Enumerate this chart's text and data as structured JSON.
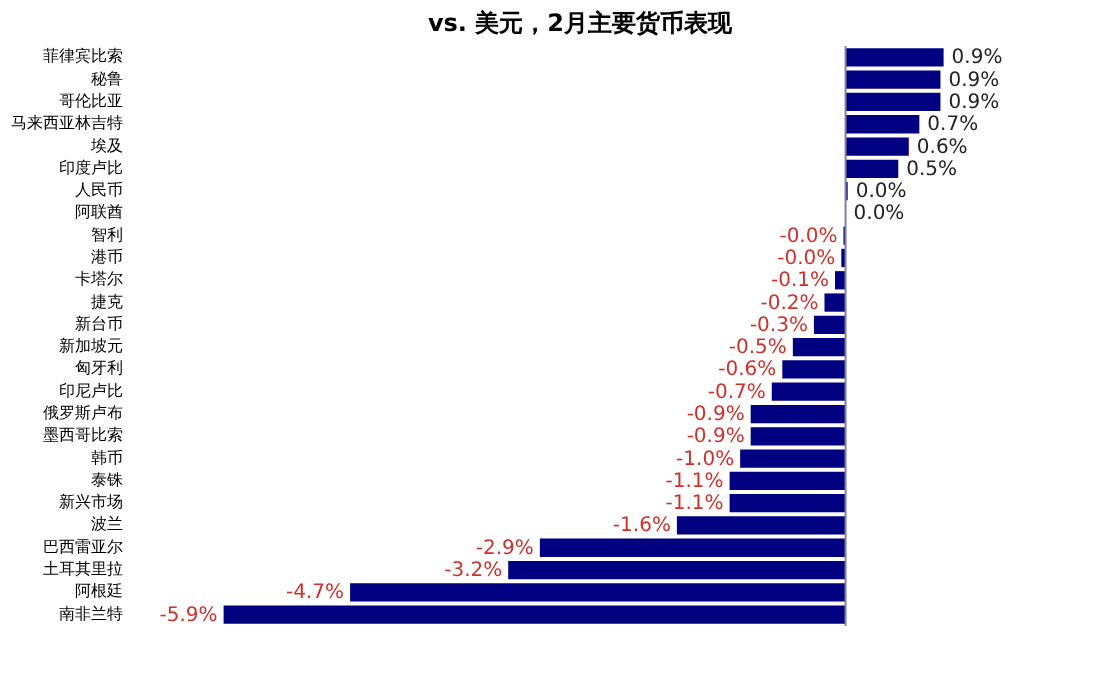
{
  "chart_data": {
    "type": "bar",
    "orientation": "horizontal",
    "title": "vs. 美元，2月主要货币表现",
    "categories": [
      "菲律宾比索",
      "秘鲁",
      "哥伦比亚",
      "马来西亚林吉特",
      "埃及",
      "印度卢比",
      "人民币",
      "阿联酋",
      "智利",
      "港币",
      "卡塔尔",
      "捷克",
      "新台币",
      "新加坡元",
      "匈牙利",
      "印尼卢比",
      "俄罗斯卢布",
      "墨西哥比索",
      "韩币",
      "泰铢",
      "新兴市场",
      "波兰",
      "巴西雷亚尔",
      "土耳其里拉",
      "阿根廷",
      "南非兰特"
    ],
    "values": [
      0.93,
      0.9,
      0.9,
      0.7,
      0.6,
      0.5,
      0.02,
      0.0,
      -0.02,
      -0.04,
      -0.1,
      -0.2,
      -0.3,
      -0.5,
      -0.6,
      -0.7,
      -0.9,
      -0.9,
      -1.0,
      -1.1,
      -1.1,
      -1.6,
      -2.9,
      -3.2,
      -4.7,
      -5.9
    ],
    "value_labels": [
      "0.9%",
      "0.9%",
      "0.9%",
      "0.7%",
      "0.6%",
      "0.5%",
      "0.0%",
      "0.0%",
      "-0.0%",
      "-0.0%",
      "-0.1%",
      "-0.2%",
      "-0.3%",
      "-0.5%",
      "-0.6%",
      "-0.7%",
      "-0.9%",
      "-0.9%",
      "-1.0%",
      "-1.1%",
      "-1.1%",
      "-1.6%",
      "-2.9%",
      "-3.2%",
      "-4.7%",
      "-5.9%"
    ],
    "color": "#000080"
  }
}
